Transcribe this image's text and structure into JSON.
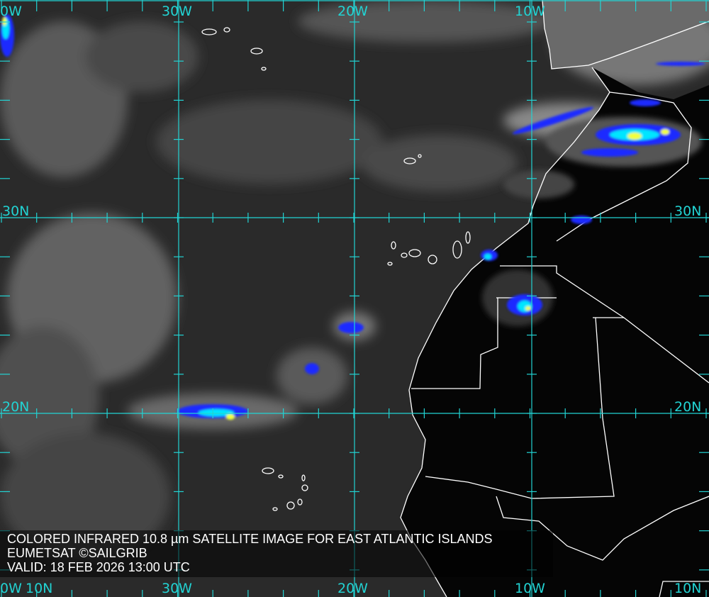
{
  "caption": {
    "title": "COLORED INFRARED 10.8 µm SATELLITE IMAGE FOR EAST ATLANTIC ISLANDS",
    "credit": "EUMETSAT ©SAILGRIB",
    "valid": "VALID:  18 FEB 2026 13:00 UTC"
  },
  "grid": {
    "top_labels": [
      "0W",
      "30W",
      "20W",
      "10W"
    ],
    "bottom_labels": [
      "0W",
      "10N",
      "30W",
      "20W",
      "10W",
      "10N"
    ],
    "left_labels": [
      "30N",
      "20N"
    ],
    "right_labels": [
      "30N",
      "20N"
    ]
  },
  "colors": {
    "grid": "#22d3d3",
    "ocean": "#2a2a2a",
    "land": "#000000",
    "coastline": "#ffffff",
    "cold_cloud_blue": "#1a2cff",
    "cold_cloud_cyan": "#00e5ff",
    "cold_cloud_yellow": "#f2ff3a"
  }
}
